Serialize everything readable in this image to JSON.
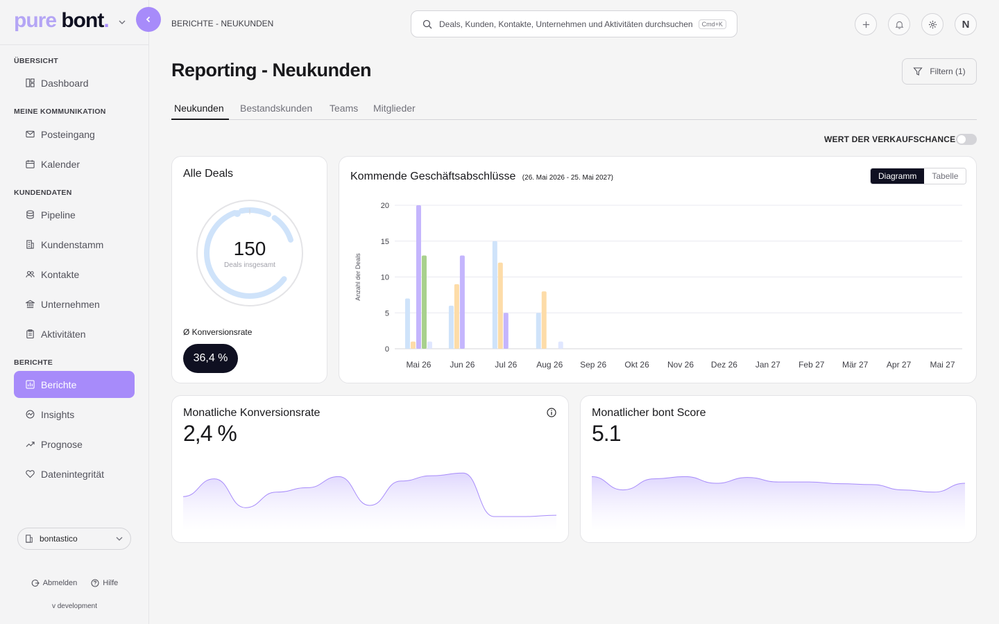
{
  "sidebar": {
    "logo": {
      "part1": "pure",
      "part2": "bont",
      "dot": "."
    },
    "sections": {
      "overview": "ÜBERSICHT",
      "communication": "MEINE KOMMUNIKATION",
      "customer_data": "KUNDENDATEN",
      "reports": "BERICHTE"
    },
    "items": {
      "dashboard": "Dashboard",
      "inbox": "Posteingang",
      "calendar": "Kalender",
      "pipeline": "Pipeline",
      "customer_base": "Kundenstamm",
      "contacts": "Kontakte",
      "companies": "Unternehmen",
      "activities": "Aktivitäten",
      "reports": "Berichte",
      "insights": "Insights",
      "forecast": "Prognose",
      "data_integrity": "Datenintegrität"
    },
    "workspace": "bontastico",
    "logout": "Abmelden",
    "help": "Hilfe",
    "version": "v development"
  },
  "header": {
    "breadcrumb": "BERICHTE - NEUKUNDEN",
    "search_placeholder": "Deals, Kunden, Kontakte, Unternehmen und Aktivitäten durchsuchen",
    "search_shortcut": "Cmd+K",
    "avatar_initial": "N"
  },
  "page": {
    "title": "Reporting - Neukunden",
    "filter_label": "Filtern (1)",
    "tabs": [
      "Neukunden",
      "Bestandskunden",
      "Teams",
      "Mitglieder"
    ],
    "toggle_label": "WERT DER VERKAUFSCHANCE",
    "toggle_on": false
  },
  "all_deals": {
    "title": "Alle Deals",
    "total": "150",
    "total_label": "Deals insgesamt",
    "conversion_label": "Ø Konversionsrate",
    "conversion_value": "36,4 %"
  },
  "upcoming": {
    "title": "Kommende Geschäftsabschlüsse",
    "range": "(26. Mai 2026 - 25. Mai 2027)",
    "view_chart": "Diagramm",
    "view_table": "Tabelle"
  },
  "monthly_conversion": {
    "title": "Monatliche Konversionsrate",
    "value": "2,4 %"
  },
  "monthly_score": {
    "title": "Monatlicher bont Score",
    "value": "5.1"
  },
  "colors": {
    "accent": "#a78bfa",
    "series": [
      "#cfe3fa",
      "#fddca8",
      "#c4b5fd",
      "#a8d08d",
      "#e0e7ff"
    ]
  },
  "chart_data": [
    {
      "type": "bar",
      "ylabel": "Anzahl der Deals",
      "ylim": [
        0,
        20
      ],
      "yticks": [
        0,
        5,
        10,
        15,
        20
      ],
      "categories": [
        "Mai 26",
        "Jun 26",
        "Jul 26",
        "Aug 26",
        "Sep 26",
        "Okt 26",
        "Nov 26",
        "Dez 26",
        "Jan 27",
        "Feb 27",
        "Mär 27",
        "Apr 27",
        "Mai 27"
      ],
      "series": [
        {
          "values": [
            7,
            6,
            15,
            5,
            0,
            0,
            0,
            0,
            0,
            0,
            0,
            0,
            0
          ]
        },
        {
          "values": [
            1,
            9,
            12,
            8,
            0,
            0,
            0,
            0,
            0,
            0,
            0,
            0,
            0
          ]
        },
        {
          "values": [
            20,
            13,
            5,
            0,
            0,
            0,
            0,
            0,
            0,
            0,
            0,
            0,
            0
          ]
        },
        {
          "values": [
            13,
            0,
            0,
            0,
            0,
            0,
            0,
            0,
            0,
            0,
            0,
            0,
            0
          ]
        },
        {
          "values": [
            1,
            0,
            0,
            1,
            0,
            0,
            0,
            0,
            0,
            0,
            0,
            0,
            0
          ]
        }
      ],
      "grid": true
    },
    {
      "type": "area",
      "values": [
        0.45,
        0.85,
        0.2,
        0.55,
        0.65,
        0.9,
        0.25,
        0.8,
        0.92,
        0.98,
        0.0,
        0.0,
        0.03
      ]
    },
    {
      "type": "area",
      "values": [
        0.9,
        0.6,
        0.85,
        0.9,
        0.75,
        0.88,
        0.78,
        0.78,
        0.74,
        0.72,
        0.6,
        0.55,
        0.75
      ]
    }
  ]
}
